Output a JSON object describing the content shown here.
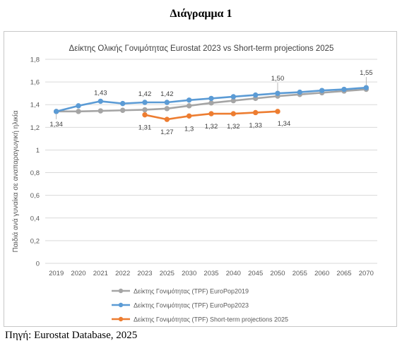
{
  "heading": "Διάγραμμα 1",
  "source": "Πηγή: Eurostat Database, 2025",
  "colors": {
    "grid": "#d9d9d9",
    "axis_text": "#595959",
    "europop2019": "#a5a5a5",
    "europop2023": "#5b9bd5",
    "stp2025": "#ed7d31"
  },
  "chart_data": {
    "type": "line",
    "title": "Δείκτης Ολικής Γονιμότητας Eurostat 2023 vs Short-term projections 2025",
    "xlabel": "",
    "ylabel": "Παιδιά ανά γυναίκα σε αναπαραγωγική ηλικία",
    "ylim": [
      0,
      1.8
    ],
    "yticks": [
      "0",
      "0,2",
      "0,4",
      "0,6",
      "0,8",
      "1",
      "1,2",
      "1,4",
      "1,6",
      "1,8"
    ],
    "grid": true,
    "legend_position": "bottom-left",
    "categories": [
      "2019",
      "2020",
      "2021",
      "2022",
      "2023",
      "2025",
      "2030",
      "2035",
      "2040",
      "2045",
      "2050",
      "2055",
      "2060",
      "2065",
      "2070"
    ],
    "series": [
      {
        "name": "Δείκτης Γονιμότητας (TPF) EuroPop2019",
        "color": "#a5a5a5",
        "values": [
          1.34,
          1.34,
          1.345,
          1.35,
          1.355,
          1.365,
          1.39,
          1.415,
          1.435,
          1.455,
          1.475,
          1.49,
          1.505,
          1.52,
          1.535
        ],
        "labels": []
      },
      {
        "name": "Δείκτης Γονιμότητας (TPF) EuroPop2023",
        "color": "#5b9bd5",
        "values": [
          1.34,
          1.39,
          1.43,
          1.41,
          1.42,
          1.42,
          1.44,
          1.455,
          1.47,
          1.485,
          1.5,
          1.51,
          1.525,
          1.535,
          1.55
        ],
        "labels": [
          {
            "index": 0,
            "text": "1,34",
            "pos": "below"
          },
          {
            "index": 2,
            "text": "1,43",
            "pos": "above"
          },
          {
            "index": 4,
            "text": "1,42",
            "pos": "above"
          },
          {
            "index": 5,
            "text": "1,42",
            "pos": "above"
          },
          {
            "index": 10,
            "text": "1,50",
            "pos": "above-high"
          },
          {
            "index": 14,
            "text": "1,55",
            "pos": "above-high"
          }
        ]
      },
      {
        "name": "Δείκτης Γονιμότητας (TPF) Short-term projections 2025",
        "color": "#ed7d31",
        "values": [
          null,
          null,
          null,
          null,
          1.31,
          1.27,
          1.3,
          1.32,
          1.32,
          1.33,
          1.34,
          null,
          null,
          null,
          null
        ],
        "labels": [
          {
            "index": 4,
            "text": "1,31",
            "pos": "below"
          },
          {
            "index": 5,
            "text": "1,27",
            "pos": "below"
          },
          {
            "index": 6,
            "text": "1,3",
            "pos": "below"
          },
          {
            "index": 7,
            "text": "1,32",
            "pos": "below"
          },
          {
            "index": 8,
            "text": "1,32",
            "pos": "below"
          },
          {
            "index": 9,
            "text": "1,33",
            "pos": "below"
          },
          {
            "index": 10,
            "text": "1,34",
            "pos": "below-right"
          }
        ]
      }
    ]
  }
}
